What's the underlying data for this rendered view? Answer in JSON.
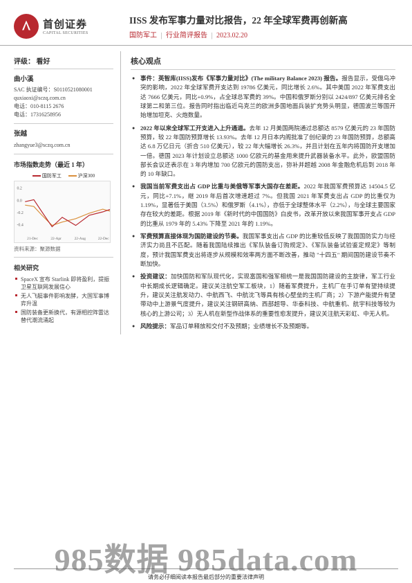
{
  "header": {
    "logo_cn": "首创证券",
    "logo_en": "CAPITAL SECURITIES",
    "title": "IISS 发布军事力量对比报告，22 年全球军费再创新高",
    "sector": "国防军工",
    "report_type": "行业简评报告",
    "date": "2023.02.20"
  },
  "sidebar": {
    "rating_label": "评级：",
    "rating_value": "看好",
    "analysts": [
      {
        "name": "曲小溪",
        "sac_label": "SAC 执证编号：",
        "sac": "S0110521080001",
        "email": "quxiaoxi@sczq.com.cn",
        "tel_label": "电话：",
        "tel": "010-8115 2676",
        "phone_label": "电话：",
        "phone": "17316258956"
      },
      {
        "name": "张越",
        "email": "zhangyue3@sczq.com.cn"
      }
    ],
    "chart": {
      "title": "市场指数走势（最近 1 年）",
      "series": [
        {
          "label": "国防军工",
          "color": "#b8282f"
        },
        {
          "label": "沪深300",
          "color": "#d98f3b"
        }
      ],
      "y_ticks": [
        "0.2",
        "0.0",
        "-0.2",
        "-0.4"
      ],
      "x_ticks": [
        "21-Dec",
        "22-Apr",
        "22-Aug",
        "22-Dec"
      ],
      "line1": "5,25 18,22 30,40 45,62 60,48 80,60 100,45 120,40 135,35",
      "line2": "5,30 18,32 30,45 45,60 60,55 80,50 100,42 120,36 135,40",
      "bg": "#fafafa",
      "source": "资料来源：聚源数据"
    },
    "related_title": "相关研究",
    "related": [
      "SpaceX 宣布 Starlink 即将盈利，提振卫星互联网发展信心",
      "无人飞艇事件影响发酵，大国军事博弈升温",
      "国防装备更新换代，有源相控阵雷达替代潮流涌起"
    ]
  },
  "main": {
    "core_title": "核心观点",
    "bullets": [
      {
        "lead": "事件：英智库(IISS)发布《军事力量对比》(The military Balance 2023) 报告。",
        "body": "报告显示，受俄乌冲突的影响，2022 年全球军费开支达到 19786 亿美元，同比增长 2.6%。其中美国 2022 年军费支出达 7666 亿美元，同比+0.9%，占全球总军费的 39%。中国和俄罗斯分别以 2424/897 亿美元排名全球第二和第三位。报告同时指出临近乌克兰的欧洲多国地面兵装扩充势头明显，德国波兰等国开始增加坦克、火炮数量。"
      },
      {
        "lead": "2022 年以来全球军工开支进入上升通道。",
        "body": "去年 12 月美国两院通过总额达 8579 亿美元的 23 年国防预算，较 22 年国防预算增长 13.93%。去年 12 月日本内阁批准了创纪录的 23 年国防预算，总额高达 6.8 万亿日元（折合 510 亿美元），较 22 年大幅增长 26.3%，并且计划在五年内将国防开支增加一倍。德国 2023 年计划设立总额达 1000 亿欧元的基金用来提升武器装备水平。此外，欧盟国防部长会议还表示在 3 年内增加 700 亿欧元的国防支出，弥补并超越 2008 年金融危机后到 2018 年的 10 年缺口。"
      },
      {
        "lead": "我国当前军费支出占 GDP 比重与美俄等军事大国存在差距。",
        "body": "2022 年我国军费预算达 14504.5 亿元，同比+7.1%，继 2019 年后首次增速超过 7%。但我国 2021 年军费支出占 GDP 的比重仅为 1.19%，显著低于美国（3.5%）和俄罗斯（4.1%），亦低于全球整体水平（2.2%），与全球主要国家存在较大的差距。根据 2019 年《新时代的中国国防》白皮书，改革开放以来我国军事开支占 GDP 的比重从 1979 年的 5.43% 下降至 2021 年的 1.19%。"
      },
      {
        "lead": "军费预算直接体现为国防建设的节奏。",
        "body": "我国军事支出占 GDP 的比重较低反映了我国国防实力与经济实力尚且不匹配。随着我国陆续推出《军队装备订购规定》、《军队装备试验鉴定规定》等制度，预计我国军费支出将逐步从规模和效率两方面不断改善，推动 \"十四五\" 期间国防建设节奏不断加快。"
      },
      {
        "lead": "投资建议：",
        "body": "加快国防和军队现代化，实现富国和强军相统一是我国国防建设的主旋律，军工行业中长期成长逻辑确定。建议关注航空军工板块，1）随着军费提升，主机厂在手订单有望持续提升，建议关注航发动力、中航西飞、中航沈飞等具有核心壁垒的主机厂商；2）下游产能提升有望带动中上游景气度提升，建议关注钢研高纳、西部超导、华泰科技、中航重机、航宇科技等较为核心的上游公司；3）无人机在新型作战体系的重要性愈发提升，建议关注航天彩虹、中无人机。"
      },
      {
        "lead": "风险提示：",
        "body": "军品订单释放和交付不及预期；业绩增长不及预期等。"
      }
    ]
  },
  "footer": "请务必仔细阅读本报告最后部分的重要法律声明",
  "watermark": "985数据 985data.com"
}
